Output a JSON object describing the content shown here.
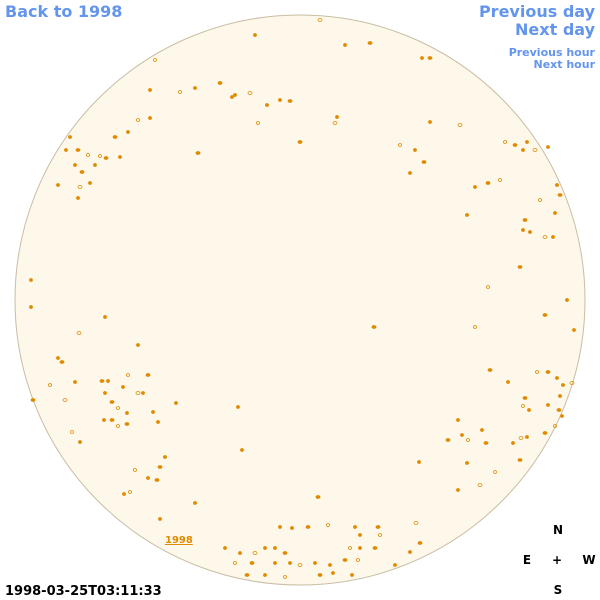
{
  "nav": {
    "back": "Back to 1998",
    "previous_day": "Previous day",
    "next_day": "Next day",
    "previous_hour": "Previous hour",
    "next_hour": "Next hour"
  },
  "year_link": "1998",
  "timestamp": "1998-03-25T03:11:33",
  "compass": {
    "north": "N",
    "east": "E",
    "center": "+",
    "west": "W",
    "south": "S"
  }
}
